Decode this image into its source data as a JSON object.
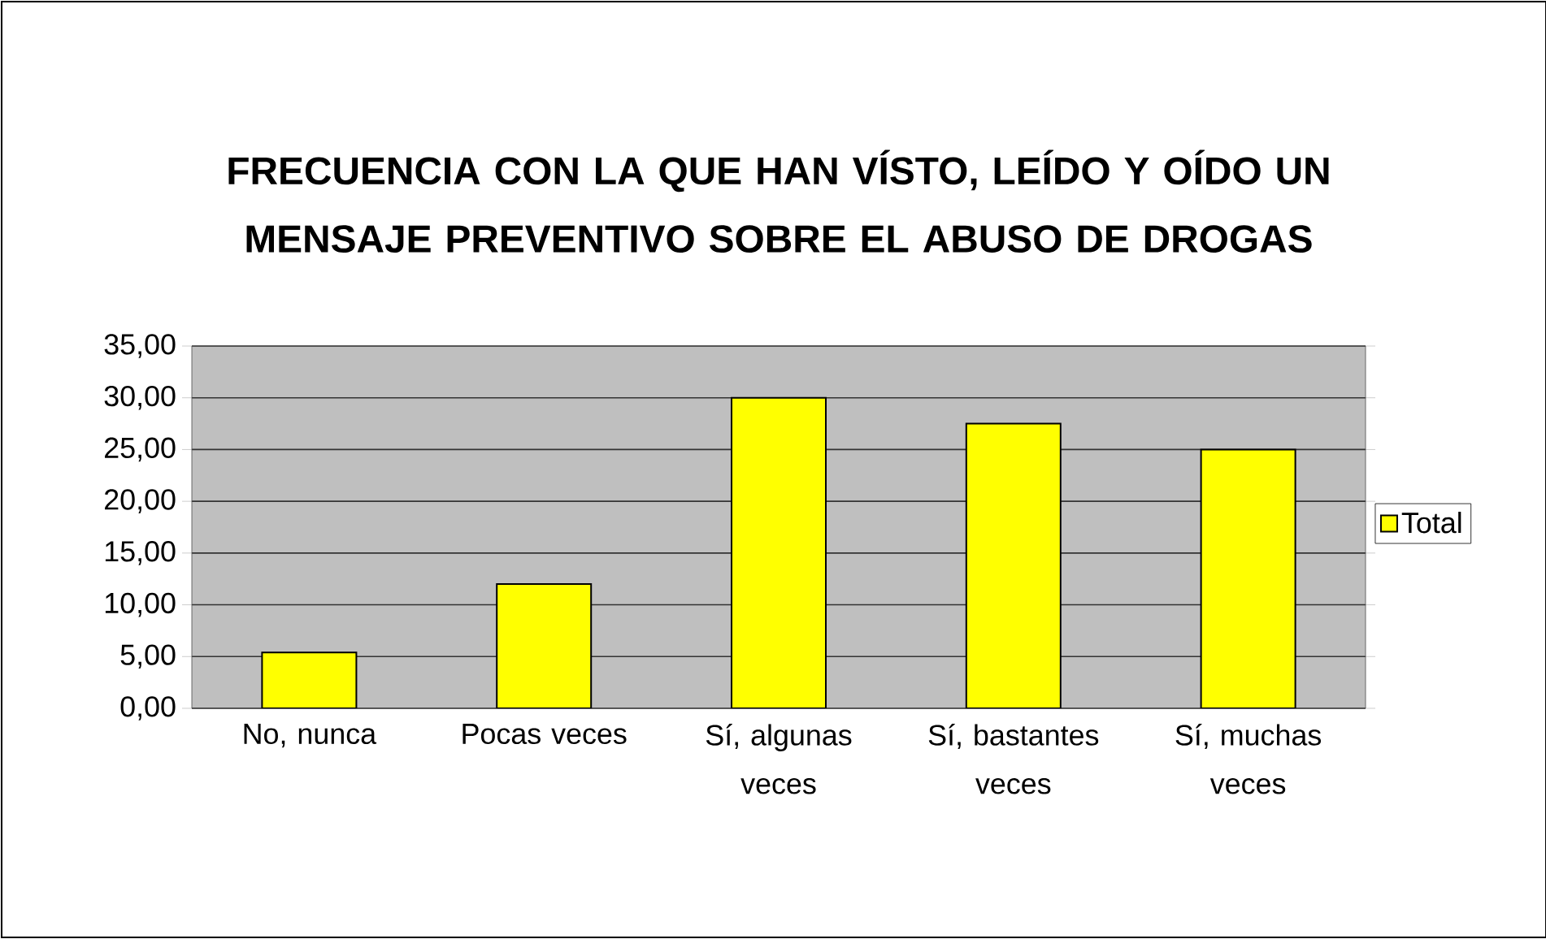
{
  "chart_data": {
    "type": "bar",
    "title": "FRECUENCIA CON LA QUE HAN VÍSTO, LEÍDO Y OÍDO UN MENSAJE PREVENTIVO SOBRE EL ABUSO DE DROGAS",
    "categories": [
      "No, nunca",
      "Pocas veces",
      "Sí, algunas veces",
      "Sí, bastantes veces",
      "Sí, muchas veces"
    ],
    "series": [
      {
        "name": "Total",
        "color": "#ffff00",
        "values": [
          5.4,
          12,
          30,
          27.5,
          25
        ]
      }
    ],
    "ylim": [
      0,
      35
    ],
    "yticks": [
      {
        "value": 0,
        "label": "0,00"
      },
      {
        "value": 5,
        "label": "5,00"
      },
      {
        "value": 10,
        "label": "10,00"
      },
      {
        "value": 15,
        "label": "15,00"
      },
      {
        "value": 20,
        "label": "20,00"
      },
      {
        "value": 25,
        "label": "25,00"
      },
      {
        "value": 30,
        "label": "30,00"
      },
      {
        "value": 35,
        "label": "35,00"
      }
    ],
    "grid": "y",
    "legend": "right"
  }
}
